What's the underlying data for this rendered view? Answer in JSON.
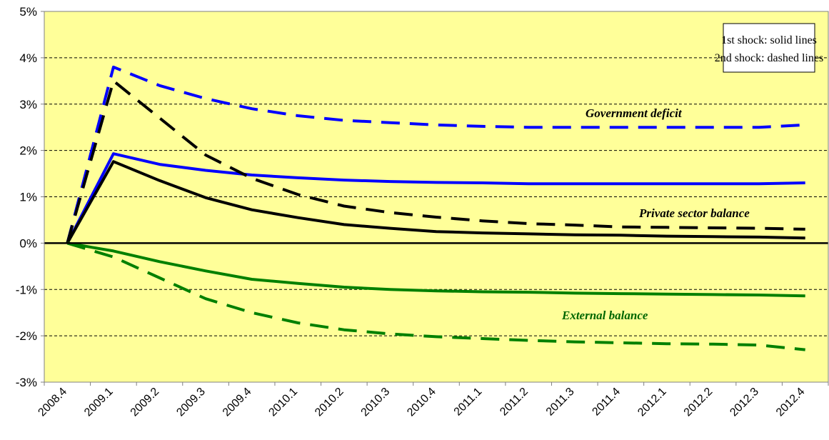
{
  "chart_data": {
    "type": "line",
    "categories": [
      "2008.4",
      "2009.1",
      "2009.2",
      "2009.3",
      "2009.4",
      "2010.1",
      "2010.2",
      "2010.3",
      "2010.4",
      "2011.1",
      "2011.2",
      "2011.3",
      "2011.4",
      "2012.1",
      "2012.2",
      "2012.3",
      "2012.4"
    ],
    "y_tick_labels": [
      "5%",
      "4%",
      "3%",
      "2%",
      "1%",
      "0%",
      "-1%",
      "-2%",
      "-3%"
    ],
    "ylim": [
      -3,
      5
    ],
    "grid": true,
    "plot_background": "#FFFF99",
    "legend_box": [
      "1st shock: solid lines",
      "2nd shock: dashed lines"
    ],
    "annotations": [
      {
        "text": "Government deficit",
        "color": "#000000"
      },
      {
        "text": "Private sector balance",
        "color": "#000000"
      },
      {
        "text": "External balance",
        "color": "#006600"
      }
    ],
    "series": [
      {
        "group": "Government deficit",
        "shock": "1st",
        "style": "solid",
        "color": "#0000FF",
        "values": [
          0,
          1.93,
          1.7,
          1.57,
          1.47,
          1.41,
          1.36,
          1.33,
          1.31,
          1.3,
          1.28,
          1.28,
          1.28,
          1.28,
          1.28,
          1.28,
          1.3
        ]
      },
      {
        "group": "Government deficit",
        "shock": "2nd",
        "style": "dashed",
        "color": "#0000FF",
        "values": [
          0,
          3.8,
          3.4,
          3.12,
          2.9,
          2.75,
          2.65,
          2.6,
          2.55,
          2.52,
          2.5,
          2.5,
          2.5,
          2.5,
          2.5,
          2.5,
          2.55
        ]
      },
      {
        "group": "Private sector balance",
        "shock": "1st",
        "style": "solid",
        "color": "#000000",
        "values": [
          0,
          1.76,
          1.35,
          0.98,
          0.72,
          0.55,
          0.4,
          0.32,
          0.25,
          0.22,
          0.2,
          0.18,
          0.17,
          0.15,
          0.14,
          0.13,
          0.11
        ]
      },
      {
        "group": "Private sector balance",
        "shock": "2nd",
        "style": "dashed",
        "color": "#000000",
        "values": [
          0,
          3.5,
          2.7,
          1.9,
          1.4,
          1.05,
          0.8,
          0.66,
          0.56,
          0.48,
          0.42,
          0.39,
          0.35,
          0.34,
          0.33,
          0.32,
          0.3
        ]
      },
      {
        "group": "External balance",
        "shock": "1st",
        "style": "solid",
        "color": "#008000",
        "values": [
          0,
          -0.17,
          -0.4,
          -0.6,
          -0.78,
          -0.87,
          -0.95,
          -1.0,
          -1.03,
          -1.05,
          -1.06,
          -1.08,
          -1.09,
          -1.1,
          -1.11,
          -1.12,
          -1.14
        ]
      },
      {
        "group": "External balance",
        "shock": "2nd",
        "style": "dashed",
        "color": "#008000",
        "values": [
          0,
          -0.3,
          -0.75,
          -1.2,
          -1.5,
          -1.72,
          -1.87,
          -1.96,
          -2.02,
          -2.06,
          -2.1,
          -2.13,
          -2.15,
          -2.17,
          -2.18,
          -2.2,
          -2.3
        ]
      }
    ]
  }
}
